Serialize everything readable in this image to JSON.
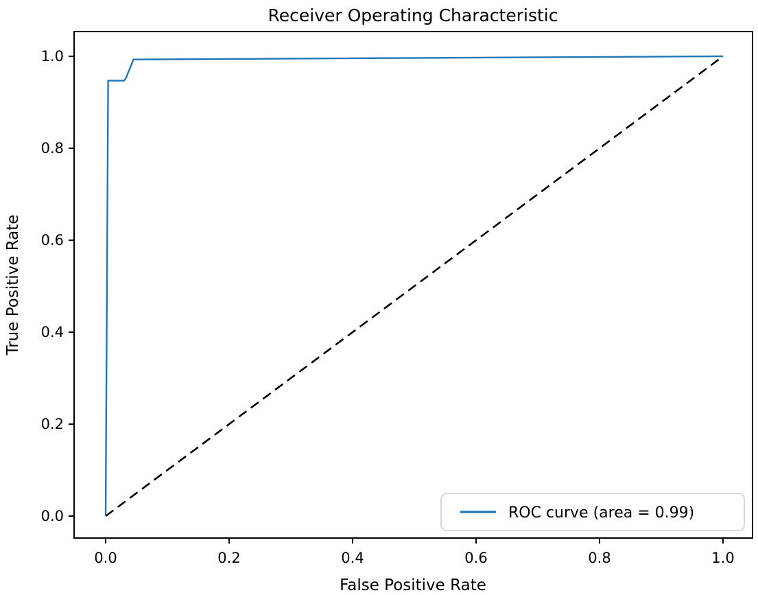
{
  "chart_data": {
    "type": "line",
    "title": "Receiver Operating Characteristic",
    "xlabel": "False Positive Rate",
    "ylabel": "True Positive Rate",
    "xlim": [
      -0.05,
      1.05
    ],
    "ylim": [
      -0.05,
      1.05
    ],
    "x_ticks": [
      0.0,
      0.2,
      0.4,
      0.6,
      0.8,
      1.0
    ],
    "y_ticks": [
      0.0,
      0.2,
      0.4,
      0.6,
      0.8,
      1.0
    ],
    "x_tick_labels": [
      "0.0",
      "0.2",
      "0.4",
      "0.6",
      "0.8",
      "1.0"
    ],
    "y_tick_labels": [
      "0.0",
      "0.2",
      "0.4",
      "0.6",
      "0.8",
      "1.0"
    ],
    "grid": false,
    "auc": 0.99,
    "legend": {
      "position": "lower right",
      "label": "ROC curve (area = 0.99)",
      "border_color": "#cccccc",
      "background": "#ffffff"
    },
    "colors": {
      "roc_curve": "#1f77b4",
      "chance_line": "#000000",
      "spine": "#000000"
    },
    "series": [
      {
        "name": "ROC curve",
        "color": "#1f77b4",
        "style": "solid",
        "points": [
          [
            0.0,
            0.0
          ],
          [
            0.004,
            0.947
          ],
          [
            0.03,
            0.947
          ],
          [
            0.033,
            0.953
          ],
          [
            0.045,
            0.993
          ],
          [
            1.0,
            1.0
          ]
        ]
      },
      {
        "name": "chance diagonal",
        "color": "#000000",
        "style": "dashed",
        "points": [
          [
            0.0,
            0.0
          ],
          [
            1.0,
            1.0
          ]
        ]
      }
    ]
  }
}
